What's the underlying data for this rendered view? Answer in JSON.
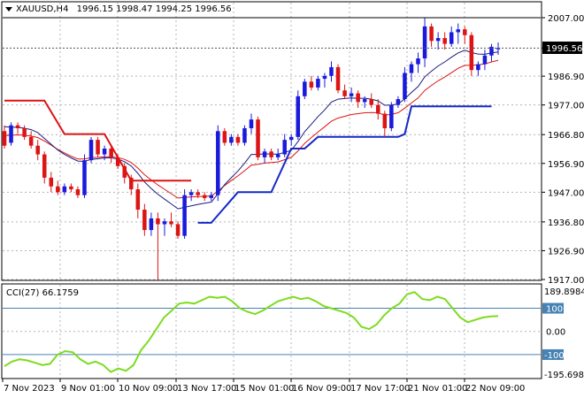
{
  "header": {
    "symbol": "XAUUSD,H4",
    "ohlc": "1996.15 1998.47 1994.25 1996.56"
  },
  "price_tag": "1996.56",
  "indicator": {
    "title": "CCI(27) 66.1759",
    "level_high": "100",
    "level_zero": "0.00",
    "level_low": "-100",
    "scale_top": "189.8984",
    "scale_bottom": "-195.6983"
  },
  "colors": {
    "bull": "#1a1adc",
    "bear": "#dc1414",
    "ma_fast": "#1a1a80",
    "ma_slow": "#dc1414",
    "stop_up": "#1428c8",
    "stop_down": "#dc1414",
    "cci": "#7ddc1e",
    "level_line": "#4682b4"
  },
  "chart_data": [
    {
      "type": "candlestick",
      "yticks": [
        "2007.00",
        "1996.56",
        "1986.90",
        "1977.00",
        "1966.80",
        "1956.90",
        "1947.00",
        "1936.80",
        "1926.90",
        "1917.00"
      ],
      "ylim": [
        1917.0,
        2007.0
      ],
      "x": [
        "7 Nov 2023",
        "9 Nov 01:00",
        "10 Nov 09:00",
        "13 Nov 17:00",
        "15 Nov 01:00",
        "16 Nov 09:00",
        "17 Nov 17:00",
        "21 Nov 01:00",
        "22 Nov 09:00"
      ],
      "candles": [
        [
          1968,
          1970,
          1962,
          1963
        ],
        [
          1964,
          1971,
          1963,
          1970
        ],
        [
          1970,
          1971,
          1967,
          1969
        ],
        [
          1969,
          1970,
          1965,
          1966
        ],
        [
          1966,
          1968,
          1962,
          1963
        ],
        [
          1963,
          1965,
          1958,
          1960
        ],
        [
          1960,
          1961,
          1950,
          1952
        ],
        [
          1952,
          1954,
          1947,
          1949
        ],
        [
          1949,
          1951,
          1946,
          1947
        ],
        [
          1947,
          1950,
          1946,
          1949
        ],
        [
          1949,
          1950,
          1947,
          1948
        ],
        [
          1948,
          1949,
          1945,
          1946
        ],
        [
          1946,
          1960,
          1945,
          1958
        ],
        [
          1958,
          1966,
          1957,
          1965
        ],
        [
          1965,
          1966,
          1959,
          1960
        ],
        [
          1960,
          1963,
          1958,
          1962
        ],
        [
          1962,
          1963,
          1957,
          1959
        ],
        [
          1959,
          1960,
          1955,
          1956
        ],
        [
          1956,
          1957,
          1950,
          1952
        ],
        [
          1952,
          1953,
          1946,
          1948
        ],
        [
          1948,
          1950,
          1938,
          1941
        ],
        [
          1941,
          1943,
          1932,
          1934
        ],
        [
          1934,
          1940,
          1932,
          1938
        ],
        [
          1938,
          1940,
          1917,
          1936
        ],
        [
          1936,
          1938,
          1932,
          1937
        ],
        [
          1937,
          1940,
          1935,
          1936
        ],
        [
          1936,
          1937,
          1931,
          1932
        ],
        [
          1932,
          1948,
          1931,
          1946
        ],
        [
          1946,
          1948,
          1944,
          1947
        ],
        [
          1947,
          1948,
          1945,
          1946
        ],
        [
          1946,
          1947,
          1944,
          1945
        ],
        [
          1945,
          1947,
          1944,
          1946
        ],
        [
          1946,
          1970,
          1944,
          1968
        ],
        [
          1968,
          1969,
          1963,
          1964
        ],
        [
          1964,
          1967,
          1963,
          1966
        ],
        [
          1966,
          1967,
          1963,
          1964
        ],
        [
          1964,
          1970,
          1963,
          1969
        ],
        [
          1969,
          1974,
          1967,
          1972
        ],
        [
          1972,
          1973,
          1958,
          1959
        ],
        [
          1959,
          1962,
          1957,
          1961
        ],
        [
          1961,
          1962,
          1958,
          1959
        ],
        [
          1959,
          1962,
          1958,
          1960
        ],
        [
          1960,
          1967,
          1959,
          1965
        ],
        [
          1965,
          1967,
          1963,
          1966
        ],
        [
          1966,
          1982,
          1965,
          1980
        ],
        [
          1980,
          1986,
          1979,
          1985
        ],
        [
          1985,
          1987,
          1982,
          1983
        ],
        [
          1983,
          1987,
          1982,
          1986
        ],
        [
          1986,
          1988,
          1983,
          1987
        ],
        [
          1987,
          1992,
          1985,
          1990
        ],
        [
          1990,
          1991,
          1981,
          1982
        ],
        [
          1982,
          1984,
          1979,
          1980
        ],
        [
          1980,
          1983,
          1978,
          1981
        ],
        [
          1981,
          1982,
          1976,
          1978
        ],
        [
          1978,
          1980,
          1976,
          1979
        ],
        [
          1979,
          1981,
          1976,
          1977
        ],
        [
          1977,
          1979,
          1972,
          1974
        ],
        [
          1974,
          1975,
          1966,
          1969
        ],
        [
          1969,
          1978,
          1968,
          1977
        ],
        [
          1977,
          1980,
          1976,
          1979
        ],
        [
          1979,
          1990,
          1978,
          1988
        ],
        [
          1988,
          1992,
          1985,
          1991
        ],
        [
          1991,
          1995,
          1988,
          1993
        ],
        [
          1993,
          2007,
          1990,
          2004
        ],
        [
          2004,
          2005,
          1997,
          1999
        ],
        [
          1999,
          2002,
          1996,
          2000
        ],
        [
          2000,
          2002,
          1996,
          1998
        ],
        [
          1998,
          2004,
          1997,
          2002
        ],
        [
          2002,
          2005,
          1998,
          2003
        ],
        [
          2003,
          2004,
          1998,
          2001
        ],
        [
          2001,
          2002,
          1987,
          1989
        ],
        [
          1989,
          1992,
          1987,
          1991
        ],
        [
          1991,
          1996,
          1989,
          1994
        ],
        [
          1994,
          1998,
          1992,
          1997
        ],
        [
          1996.15,
          1998.47,
          1994.25,
          1996.56
        ]
      ],
      "ma_fast": [
        1969.5,
        1969.4,
        1969.3,
        1969.0,
        1968.5,
        1967.5,
        1965.5,
        1963.5,
        1961.5,
        1960.0,
        1958.8,
        1957.7,
        1957.6,
        1958.3,
        1958.5,
        1958.8,
        1958.8,
        1958.4,
        1957.5,
        1956.0,
        1953.5,
        1950.5,
        1948.3,
        1946.3,
        1944.6,
        1943.0,
        1941.3,
        1941.8,
        1942.3,
        1942.8,
        1943.2,
        1943.6,
        1946.5,
        1949.6,
        1952.0,
        1954.3,
        1957.0,
        1960.0,
        1960.0,
        1960.2,
        1960.1,
        1960.1,
        1960.7,
        1961.4,
        1964.4,
        1967.8,
        1970.4,
        1973.0,
        1975.3,
        1978.0,
        1979.0,
        1979.2,
        1979.4,
        1979.3,
        1979.3,
        1979.0,
        1978.4,
        1976.9,
        1977.0,
        1977.3,
        1979.1,
        1981.3,
        1983.3,
        1986.7,
        1988.6,
        1990.4,
        1991.8,
        1993.4,
        1994.9,
        1995.8,
        1995.0,
        1994.5,
        1994.4,
        1994.9,
        1995.2
      ],
      "ma_slow": [
        1966.5,
        1966.6,
        1966.7,
        1966.6,
        1966.3,
        1965.8,
        1964.6,
        1963.2,
        1961.7,
        1960.5,
        1959.4,
        1958.4,
        1958.4,
        1958.9,
        1959.0,
        1959.2,
        1959.2,
        1958.9,
        1958.3,
        1957.2,
        1955.3,
        1953.0,
        1951.2,
        1949.5,
        1948.0,
        1946.5,
        1945.0,
        1945.2,
        1945.4,
        1945.5,
        1945.6,
        1945.7,
        1947.4,
        1949.3,
        1951.0,
        1952.6,
        1954.4,
        1956.3,
        1956.6,
        1957.0,
        1957.2,
        1957.4,
        1958.2,
        1959.0,
        1961.2,
        1963.8,
        1965.8,
        1967.7,
        1969.5,
        1971.4,
        1972.5,
        1973.1,
        1973.7,
        1974.0,
        1974.3,
        1974.4,
        1974.3,
        1973.5,
        1973.8,
        1974.3,
        1975.9,
        1977.7,
        1979.4,
        1982.0,
        1983.7,
        1985.3,
        1986.6,
        1988.1,
        1989.6,
        1990.6,
        1990.6,
        1990.8,
        1991.1,
        1991.8,
        1992.3
      ],
      "stop_down": [
        [
          0,
          1978.5
        ],
        [
          6,
          1978.5
        ],
        [
          9,
          1967.0
        ],
        [
          15,
          1967.0
        ],
        [
          19,
          1951.0
        ],
        [
          28,
          1951.0
        ]
      ],
      "stop_up": [
        [
          29,
          1936.5
        ],
        [
          31,
          1936.5
        ],
        [
          35,
          1947.0
        ],
        [
          40,
          1947.0
        ],
        [
          43,
          1962.0
        ],
        [
          45,
          1962.0
        ],
        [
          47,
          1966.0
        ],
        [
          57,
          1966.0
        ],
        [
          58,
          1966.0
        ],
        [
          59,
          1966.0
        ],
        [
          60,
          1967.0
        ],
        [
          61,
          1976.5
        ],
        [
          73,
          1976.5
        ]
      ]
    },
    {
      "type": "line",
      "title": "CCI(27) 66.1759",
      "ylim": [
        -195.6983,
        189.8984
      ],
      "levels": [
        100,
        0,
        -100
      ],
      "series": [
        {
          "values": [
            -150,
            -130,
            -120,
            -125,
            -135,
            -145,
            -140,
            -100,
            -85,
            -90,
            -120,
            -140,
            -130,
            -145,
            -175,
            -160,
            -170,
            -145,
            -80,
            -40,
            10,
            60,
            90,
            120,
            125,
            120,
            135,
            150,
            145,
            150,
            130,
            100,
            85,
            75,
            90,
            110,
            130,
            140,
            150,
            140,
            145,
            130,
            110,
            100,
            90,
            80,
            60,
            20,
            10,
            30,
            70,
            100,
            120,
            160,
            170,
            140,
            135,
            150,
            140,
            100,
            60,
            40,
            50,
            60,
            65,
            66.1759
          ]
        }
      ]
    }
  ]
}
